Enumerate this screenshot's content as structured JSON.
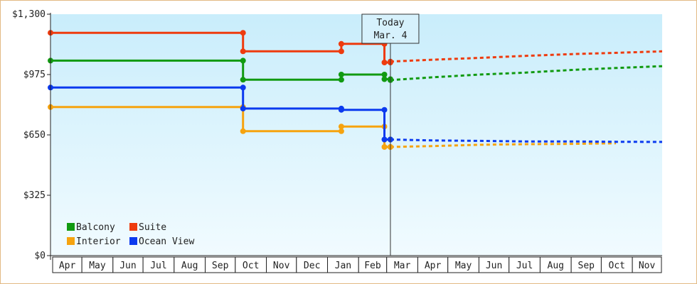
{
  "chart_data": {
    "type": "line",
    "step": true,
    "title": "",
    "xlabel": "",
    "ylabel": "",
    "ylim": [
      0,
      1300
    ],
    "yticks": [
      {
        "value": 0,
        "label": "$0"
      },
      {
        "value": 325,
        "label": "$325"
      },
      {
        "value": 650,
        "label": "$650"
      },
      {
        "value": 975,
        "label": "$975"
      },
      {
        "value": 1300,
        "label": "$1,300"
      }
    ],
    "xlim": [
      "2022-03-30",
      "2023-11-30"
    ],
    "months": [
      "Apr",
      "May",
      "Jun",
      "Jul",
      "Aug",
      "Sep",
      "Oct",
      "Nov",
      "Dec",
      "Jan",
      "Feb",
      "Mar",
      "Apr",
      "May",
      "Jun",
      "Jul",
      "Aug",
      "Sep",
      "Oct",
      "Nov"
    ],
    "month_starts": [
      "2022-04-01",
      "2022-05-01",
      "2022-06-01",
      "2022-07-01",
      "2022-08-01",
      "2022-09-01",
      "2022-10-01",
      "2022-11-01",
      "2022-12-01",
      "2023-01-01",
      "2023-02-01",
      "2023-03-01",
      "2023-04-01",
      "2023-05-01",
      "2023-06-01",
      "2023-07-01",
      "2023-08-01",
      "2023-09-01",
      "2023-10-01",
      "2023-11-01"
    ],
    "today": {
      "line1": "Today",
      "line2": "Mar. 4",
      "date": "2023-03-04"
    },
    "legend": {
      "position": "bottom-left"
    },
    "grid": false,
    "background_gradient": [
      "#c9edfb",
      "#f1fbff"
    ],
    "series": [
      {
        "name": "Balcony",
        "color": "#119a11",
        "history": [
          [
            "2022-03-30",
            1050
          ],
          [
            "2022-10-08",
            1050
          ],
          [
            "2022-10-08",
            947
          ],
          [
            "2023-01-14",
            947
          ],
          [
            "2023-01-14",
            975
          ],
          [
            "2023-02-26",
            975
          ],
          [
            "2023-02-26",
            950
          ],
          [
            "2023-03-04",
            950
          ]
        ],
        "projection": [
          [
            "2023-03-04",
            945
          ],
          [
            "2023-04-15",
            960
          ],
          [
            "2023-06-01",
            975
          ],
          [
            "2023-07-15",
            985
          ],
          [
            "2023-09-01",
            1000
          ],
          [
            "2023-10-15",
            1010
          ],
          [
            "2023-11-30",
            1020
          ]
        ]
      },
      {
        "name": "Suite",
        "color": "#ee3b0e",
        "history": [
          [
            "2022-03-30",
            1200
          ],
          [
            "2022-10-08",
            1200
          ],
          [
            "2022-10-08",
            1100
          ],
          [
            "2023-01-14",
            1100
          ],
          [
            "2023-01-14",
            1140
          ],
          [
            "2023-02-26",
            1140
          ],
          [
            "2023-02-26",
            1040
          ],
          [
            "2023-03-04",
            1040
          ]
        ],
        "projection": [
          [
            "2023-03-04",
            1045
          ],
          [
            "2023-04-15",
            1055
          ],
          [
            "2023-06-01",
            1065
          ],
          [
            "2023-07-15",
            1075
          ],
          [
            "2023-09-01",
            1085
          ],
          [
            "2023-10-15",
            1092
          ],
          [
            "2023-11-30",
            1100
          ]
        ]
      },
      {
        "name": "Interior",
        "color": "#f6a30f",
        "history": [
          [
            "2022-03-30",
            800
          ],
          [
            "2022-10-08",
            800
          ],
          [
            "2022-10-08",
            670
          ],
          [
            "2023-01-14",
            670
          ],
          [
            "2023-01-14",
            695
          ],
          [
            "2023-02-26",
            695
          ],
          [
            "2023-02-26",
            585
          ],
          [
            "2023-03-04",
            585
          ]
        ],
        "projection": [
          [
            "2023-03-04",
            585
          ],
          [
            "2023-04-15",
            590
          ],
          [
            "2023-06-01",
            597
          ],
          [
            "2023-07-15",
            600
          ],
          [
            "2023-09-01",
            602
          ],
          [
            "2023-10-15",
            605
          ]
        ]
      },
      {
        "name": "Ocean View",
        "color": "#0b3aef",
        "history": [
          [
            "2022-03-30",
            905
          ],
          [
            "2022-10-08",
            905
          ],
          [
            "2022-10-08",
            792
          ],
          [
            "2023-01-14",
            792
          ],
          [
            "2023-01-14",
            785
          ],
          [
            "2023-02-26",
            785
          ],
          [
            "2023-02-26",
            625
          ],
          [
            "2023-03-04",
            625
          ]
        ],
        "projection": [
          [
            "2023-03-04",
            625
          ],
          [
            "2023-04-15",
            620
          ],
          [
            "2023-06-01",
            618
          ],
          [
            "2023-07-15",
            615
          ],
          [
            "2023-09-01",
            615
          ],
          [
            "2023-10-15",
            613
          ],
          [
            "2023-11-30",
            612
          ]
        ]
      }
    ]
  }
}
